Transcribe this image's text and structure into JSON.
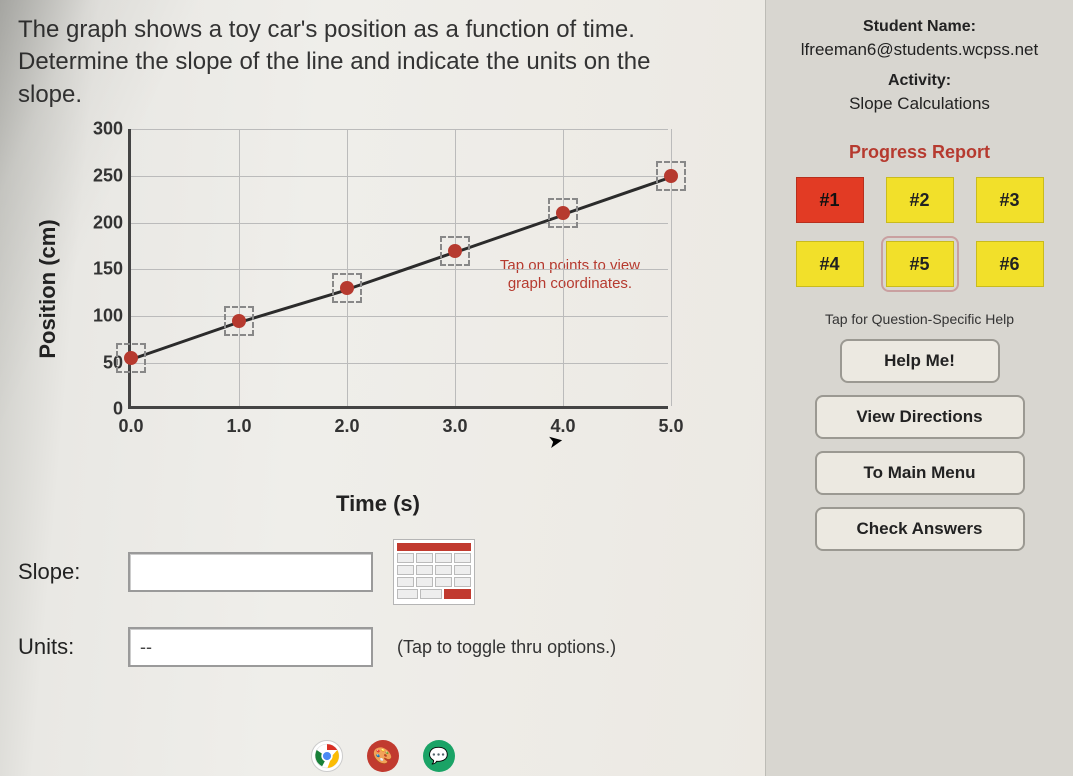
{
  "prompt": "The graph shows a toy car's position as a function of time. Determine the slope of the line and indicate the units on the slope.",
  "chart": {
    "type": "line",
    "ylabel": "Position (cm)",
    "xlabel": "Time (s)",
    "xlim": [
      0.0,
      5.0
    ],
    "ylim": [
      0,
      300
    ],
    "xtick_step": 1.0,
    "ytick_step": 50,
    "xticks": [
      "0.0",
      "1.0",
      "2.0",
      "3.0",
      "4.0",
      "5.0"
    ],
    "yticks": [
      "0",
      "50",
      "100",
      "150",
      "200",
      "250",
      "300"
    ],
    "grid_color": "#bbbbbb",
    "axis_color": "#444444",
    "background_color": "#efeeea",
    "line_color": "#2b2b2b",
    "line_width": 3,
    "point_color": "#b63a2f",
    "point_radius": 7,
    "point_box_border": "#888888",
    "points": [
      {
        "x": 0.0,
        "y": 55
      },
      {
        "x": 1.0,
        "y": 95
      },
      {
        "x": 2.0,
        "y": 130
      },
      {
        "x": 3.0,
        "y": 170
      },
      {
        "x": 4.0,
        "y": 210
      },
      {
        "x": 5.0,
        "y": 250
      }
    ],
    "hint_text_1": "Tap on points to view",
    "hint_text_2": "graph coordinates.",
    "hint_color": "#b63a2f",
    "title_fontsize": 22,
    "tick_fontsize": 18
  },
  "answers": {
    "slope_label": "Slope:",
    "slope_value": "",
    "units_label": "Units:",
    "units_value": "--",
    "units_note": "(Tap to toggle thru options.)"
  },
  "sidebar": {
    "student_label": "Student Name:",
    "student_value": "lfreeman6@students.wcpss.net",
    "activity_label": "Activity:",
    "activity_value": "Slope Calculations",
    "progress_label": "Progress Report",
    "questions": [
      {
        "label": "#1",
        "state": "wrong"
      },
      {
        "label": "#2",
        "state": "pending"
      },
      {
        "label": "#3",
        "state": "pending"
      },
      {
        "label": "#4",
        "state": "pending"
      },
      {
        "label": "#5",
        "state": "current"
      },
      {
        "label": "#6",
        "state": "pending"
      }
    ],
    "help_label": "Tap for Question-Specific Help",
    "help_button": "Help Me!",
    "directions_button": "View Directions",
    "menu_button": "To Main Menu",
    "check_button": "Check Answers",
    "colors": {
      "pending_bg": "#f2e02a",
      "wrong_bg": "#e23b24",
      "button_bg": "#ece9e1",
      "button_border": "#9b9992"
    }
  }
}
